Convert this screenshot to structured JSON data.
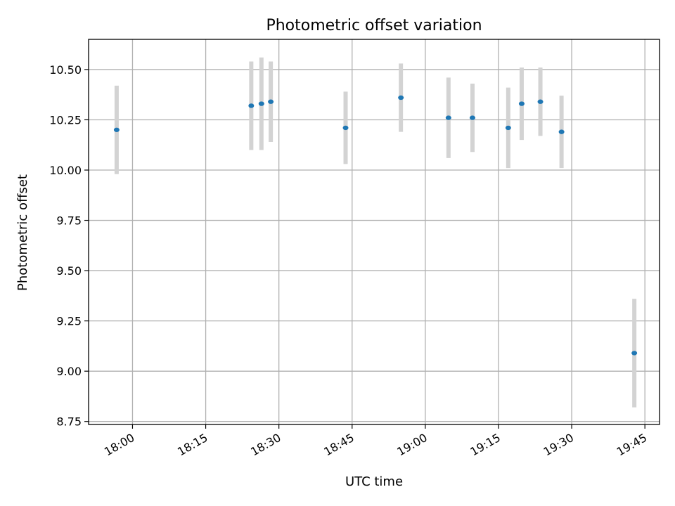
{
  "chart_data": {
    "type": "scatter",
    "title": "Photometric offset variation",
    "xlabel": "UTC time",
    "ylabel": "Photometric offset",
    "xlim": [
      "17:51",
      "19:48"
    ],
    "ylim": [
      8.735,
      10.65
    ],
    "grid": true,
    "x_ticks": [
      "18:00",
      "18:15",
      "18:30",
      "18:45",
      "19:00",
      "19:15",
      "19:30",
      "19:45"
    ],
    "y_ticks": [
      "8.75",
      "9.00",
      "9.25",
      "9.50",
      "9.75",
      "10.00",
      "10.25",
      "10.50"
    ],
    "series": [
      {
        "marker_color": "#1f77b4",
        "errorbar_color": "#d3d3d3",
        "points": [
          {
            "x": "17:56:45",
            "y": 10.2,
            "yerr": 0.22
          },
          {
            "x": "18:24:20",
            "y": 10.32,
            "yerr": 0.22
          },
          {
            "x": "18:26:25",
            "y": 10.33,
            "yerr": 0.23
          },
          {
            "x": "18:28:20",
            "y": 10.34,
            "yerr": 0.2
          },
          {
            "x": "18:43:40",
            "y": 10.21,
            "yerr": 0.18
          },
          {
            "x": "18:55:00",
            "y": 10.36,
            "yerr": 0.17
          },
          {
            "x": "19:04:45",
            "y": 10.26,
            "yerr": 0.2
          },
          {
            "x": "19:09:40",
            "y": 10.26,
            "yerr": 0.17
          },
          {
            "x": "19:17:00",
            "y": 10.21,
            "yerr": 0.2
          },
          {
            "x": "19:19:45",
            "y": 10.33,
            "yerr": 0.18
          },
          {
            "x": "19:23:35",
            "y": 10.34,
            "yerr": 0.17
          },
          {
            "x": "19:27:55",
            "y": 10.19,
            "yerr": 0.18
          },
          {
            "x": "19:42:50",
            "y": 9.09,
            "yerr": 0.27
          }
        ]
      }
    ]
  }
}
